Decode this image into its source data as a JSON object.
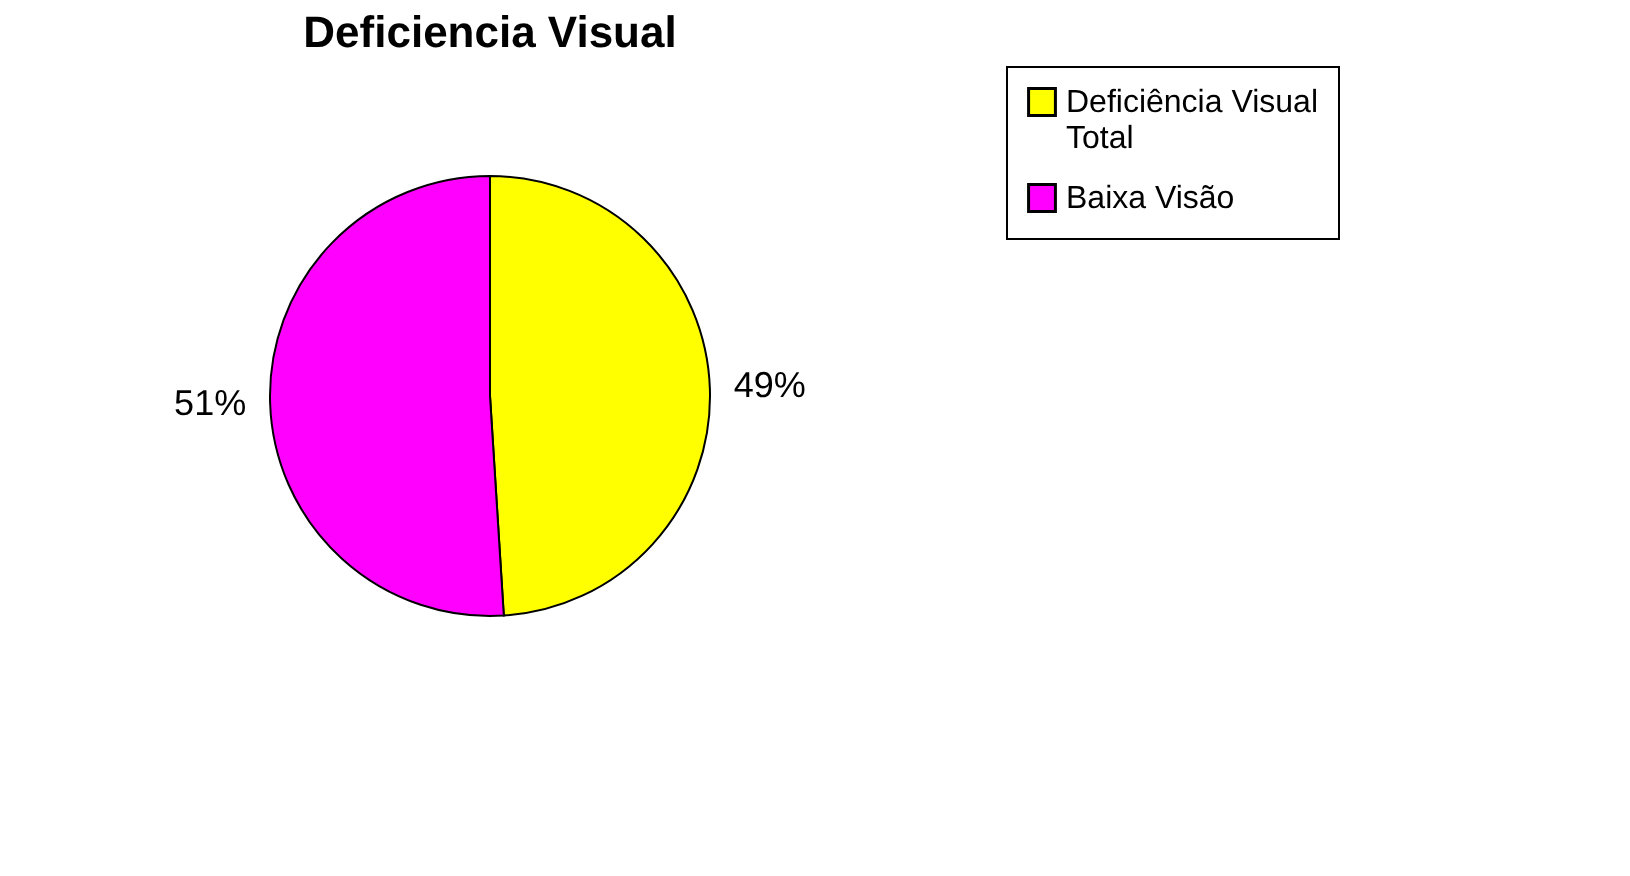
{
  "chart_data": {
    "type": "pie",
    "title": "Deficiencia Visual",
    "categories": [
      "Deficiência Visual Total",
      "Baixa Visão"
    ],
    "values": [
      49,
      51
    ],
    "colors": [
      "#ffff00",
      "#ff00ff"
    ],
    "value_labels": [
      "49%",
      "51%"
    ],
    "legend": "right"
  }
}
